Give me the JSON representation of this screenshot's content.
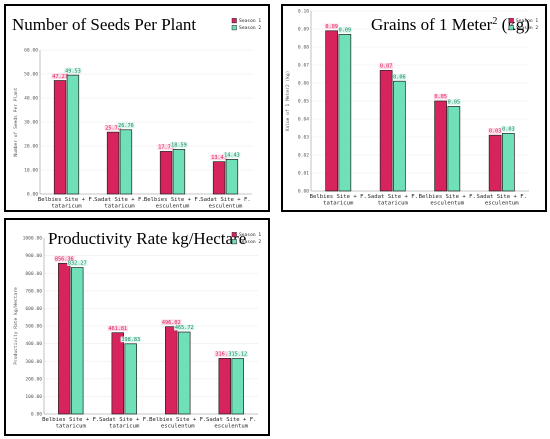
{
  "colors": {
    "season1": "#d8245c",
    "season2": "#6fe0b8",
    "label1": "#ffd6e6",
    "label2": "#d8f6ec",
    "bar_edge": "#222222"
  },
  "chart_data": [
    {
      "type": "bar",
      "title": "Number of Seeds Per Plant",
      "title_sup": "",
      "title_suffix": "",
      "xlabel": "",
      "ylabel": "Number of Seeds Per Plant",
      "ylim": [
        0,
        60
      ],
      "yticks": [
        "0.00",
        "10.00",
        "20.00",
        "30.00",
        "40.00",
        "50.00",
        "60.00"
      ],
      "categories": [
        "Belbies Site + F. tataricum",
        "Sadat Site + F. tataricum",
        "Belbies Site + F. esculentum",
        "Sadat Site + F. esculentum"
      ],
      "series": [
        {
          "name": "Season 1",
          "values": [
            47.27,
            25.78,
            17.74,
            13.47
          ],
          "labels": [
            "47.27",
            "25.78",
            "17.74",
            "13.47"
          ]
        },
        {
          "name": "Season 2",
          "values": [
            49.53,
            26.76,
            18.59,
            14.43
          ],
          "labels": [
            "49.53",
            "26.76",
            "18.59",
            "14.43"
          ]
        }
      ],
      "legend": "top-right",
      "grid": true
    },
    {
      "type": "bar",
      "title": "Grains of 1 Meter",
      "title_sup": "2",
      "title_suffix": " (kg)",
      "xlabel": "",
      "ylabel": "Value of 1 Meter2 (kg)",
      "ylim": [
        0,
        0.1
      ],
      "yticks": [
        "0.00",
        "0.01",
        "0.02",
        "0.03",
        "0.04",
        "0.05",
        "0.06",
        "0.07",
        "0.08",
        "0.09",
        "0.10"
      ],
      "categories": [
        "Belbies Site + F. tataricum",
        "Sadat Site + F. tataricum",
        "Belbies Site + F. esculentum",
        "Sadat Site + F. esculentum"
      ],
      "series": [
        {
          "name": "Season 1",
          "values": [
            0.089,
            0.067,
            0.05,
            0.031
          ],
          "labels": [
            "0.09",
            "0.07",
            "0.05",
            "0.03"
          ]
        },
        {
          "name": "Season 2",
          "values": [
            0.087,
            0.061,
            0.047,
            0.032
          ],
          "labels": [
            "0.09",
            "0.06",
            "0.05",
            "0.03"
          ]
        }
      ],
      "legend": "top-right",
      "grid": true
    },
    {
      "type": "bar",
      "title": "Productivity Rate kg/Hectare",
      "title_sup": "",
      "title_suffix": "",
      "xlabel": "",
      "ylabel": "Productivity Rate kg/Hectare",
      "ylim": [
        0,
        1000
      ],
      "yticks": [
        "0.00",
        "100.00",
        "200.00",
        "300.00",
        "400.00",
        "500.00",
        "600.00",
        "700.00",
        "800.00",
        "900.00",
        "1000.00"
      ],
      "categories": [
        "Belbies Site + F. tataricum",
        "Sadat Site + F. tataricum",
        "Belbies Site + F. esculentum",
        "Sadat Site + F. esculentum"
      ],
      "series": [
        {
          "name": "Season 1",
          "values": [
            856.36,
            461.81,
            496.02,
            316.1
          ],
          "labels": [
            "856.36",
            "461.81",
            "496.02",
            "316.10"
          ]
        },
        {
          "name": "Season 2",
          "values": [
            832.27,
            398.83,
            465.72,
            315.12
          ],
          "labels": [
            "832.27",
            "398.83",
            "465.72",
            "315.12"
          ]
        }
      ],
      "legend": "top-right",
      "grid": true
    }
  ]
}
